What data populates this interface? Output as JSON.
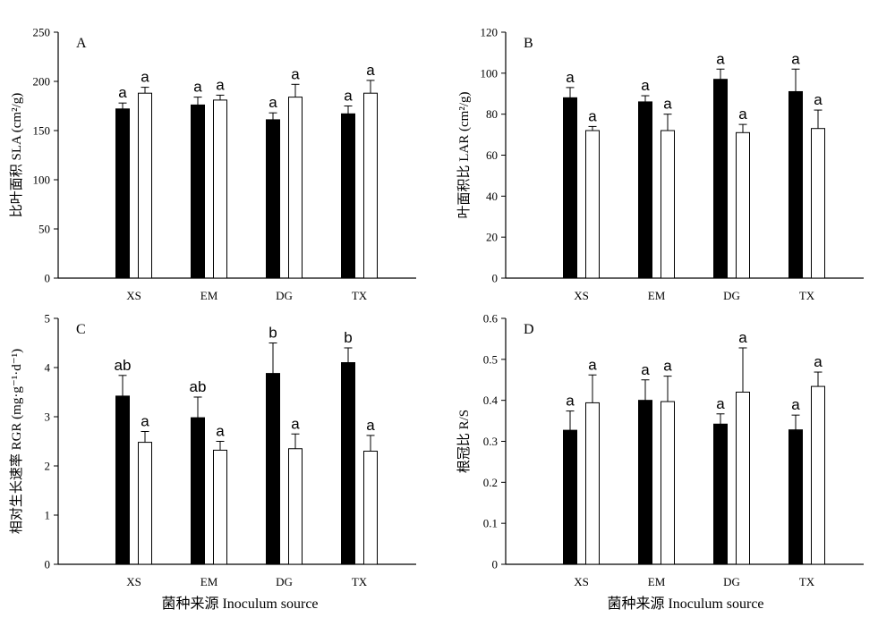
{
  "colors": {
    "series_1": "#000000",
    "series_2": "#ffffff",
    "stroke": "#000000"
  },
  "x_axis_title_left": "菌种来源 Inoculum source",
  "x_axis_title_right": "菌种来源 Inoculum source",
  "chart_data": [
    {
      "panel": "A",
      "type": "bar",
      "ylabel": "比叶面积 SLA (cm²/g)",
      "ylim": [
        0,
        250
      ],
      "yticks": [
        0,
        50,
        100,
        150,
        200,
        250
      ],
      "ytick_labels": [
        "0",
        "50",
        "100",
        "150",
        "200",
        "250"
      ],
      "categories": [
        "XS",
        "EM",
        "DG",
        "TX"
      ],
      "series": [
        {
          "values": [
            172,
            176,
            161,
            167
          ],
          "errors": [
            6,
            8,
            7,
            8
          ],
          "labels": [
            "a",
            "a",
            "a",
            "a"
          ]
        },
        {
          "values": [
            188,
            181,
            184,
            188
          ],
          "errors": [
            6,
            5,
            13,
            13
          ],
          "labels": [
            "a",
            "a",
            "a",
            "a"
          ]
        }
      ]
    },
    {
      "panel": "B",
      "type": "bar",
      "ylabel": "叶面积比 LAR (cm²/g)",
      "ylim": [
        0,
        120
      ],
      "yticks": [
        0,
        20,
        40,
        60,
        80,
        100,
        120
      ],
      "ytick_labels": [
        "0",
        "20",
        "40",
        "60",
        "80",
        "100",
        "120"
      ],
      "categories": [
        "XS",
        "EM",
        "DG",
        "TX"
      ],
      "series": [
        {
          "values": [
            88,
            86,
            97,
            91
          ],
          "errors": [
            5,
            3,
            5,
            11
          ],
          "labels": [
            "a",
            "a",
            "a",
            "a"
          ]
        },
        {
          "values": [
            72,
            72,
            71,
            73
          ],
          "errors": [
            2,
            8,
            4,
            9
          ],
          "labels": [
            "a",
            "a",
            "a",
            "a"
          ]
        }
      ]
    },
    {
      "panel": "C",
      "type": "bar",
      "ylabel": "相对生长速率 RGR (mg·g⁻¹·d⁻¹)",
      "ylim": [
        0,
        5
      ],
      "yticks": [
        0,
        1,
        2,
        3,
        4,
        5
      ],
      "ytick_labels": [
        "0",
        "1",
        "2",
        "3",
        "4",
        "5"
      ],
      "categories": [
        "XS",
        "EM",
        "DG",
        "TX"
      ],
      "series": [
        {
          "values": [
            3.42,
            2.98,
            3.88,
            4.1
          ],
          "errors": [
            0.42,
            0.42,
            0.62,
            0.3
          ],
          "labels": [
            "ab",
            "ab",
            "b",
            "b"
          ]
        },
        {
          "values": [
            2.48,
            2.32,
            2.35,
            2.3
          ],
          "errors": [
            0.22,
            0.18,
            0.3,
            0.32
          ],
          "labels": [
            "a",
            "a",
            "a",
            "a"
          ]
        }
      ]
    },
    {
      "panel": "D",
      "type": "bar",
      "ylabel": "根冠比 R/S",
      "ylim": [
        0,
        0.6
      ],
      "yticks": [
        0,
        0.1,
        0.2,
        0.3,
        0.4,
        0.5,
        0.6
      ],
      "ytick_labels": [
        "0",
        "0.1",
        "0.2",
        "0.3",
        "0.4",
        "0.5",
        "0.6"
      ],
      "categories": [
        "XS",
        "EM",
        "DG",
        "TX"
      ],
      "series": [
        {
          "values": [
            0.327,
            0.4,
            0.342,
            0.328
          ],
          "errors": [
            0.047,
            0.05,
            0.025,
            0.036
          ],
          "labels": [
            "a",
            "a",
            "a",
            "a"
          ]
        },
        {
          "values": [
            0.394,
            0.397,
            0.42,
            0.434
          ],
          "errors": [
            0.068,
            0.062,
            0.108,
            0.035
          ],
          "labels": [
            "a",
            "a",
            "a",
            "a"
          ]
        }
      ]
    }
  ]
}
